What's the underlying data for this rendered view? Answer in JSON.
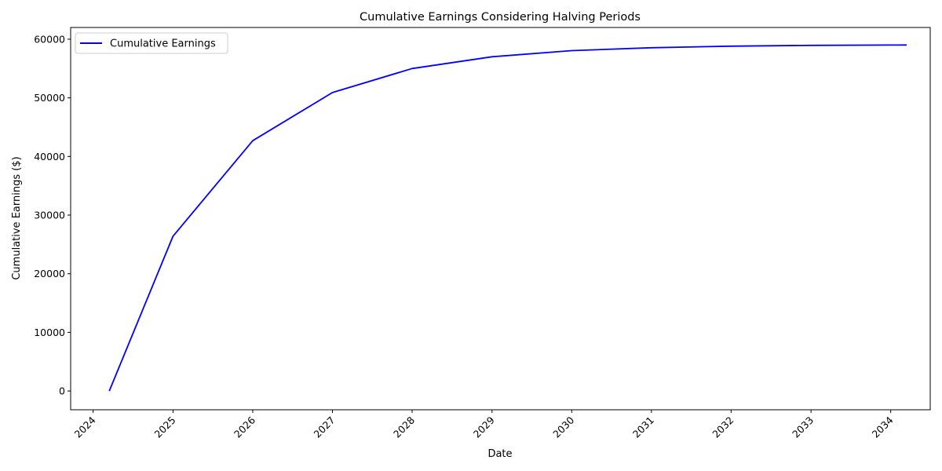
{
  "chart_data": {
    "type": "line",
    "title": "Cumulative Earnings Considering Halving Periods",
    "xlabel": "Date",
    "ylabel": "Cumulative Earnings ($)",
    "x_ticks": [
      "2024",
      "2025",
      "2026",
      "2027",
      "2028",
      "2029",
      "2030",
      "2031",
      "2032",
      "2033",
      "2034"
    ],
    "y_ticks": [
      "0",
      "10000",
      "20000",
      "30000",
      "40000",
      "50000",
      "60000"
    ],
    "xlim": [
      "2023-09-20",
      "2034-07-01"
    ],
    "ylim": [
      -3200,
      62000
    ],
    "grid": false,
    "legend_position": "upper-left",
    "series": [
      {
        "name": "Cumulative Earnings",
        "color": "#0000ff",
        "x": [
          "2024-03-15",
          "2025-01-01",
          "2026-01-01",
          "2027-01-01",
          "2028-01-01",
          "2029-01-01",
          "2030-01-01",
          "2031-01-01",
          "2032-01-01",
          "2033-01-01",
          "2034-01-01",
          "2034-03-15"
        ],
        "y": [
          0,
          26400,
          42700,
          50900,
          55000,
          57000,
          58050,
          58550,
          58820,
          58950,
          59000,
          59020
        ]
      }
    ]
  }
}
